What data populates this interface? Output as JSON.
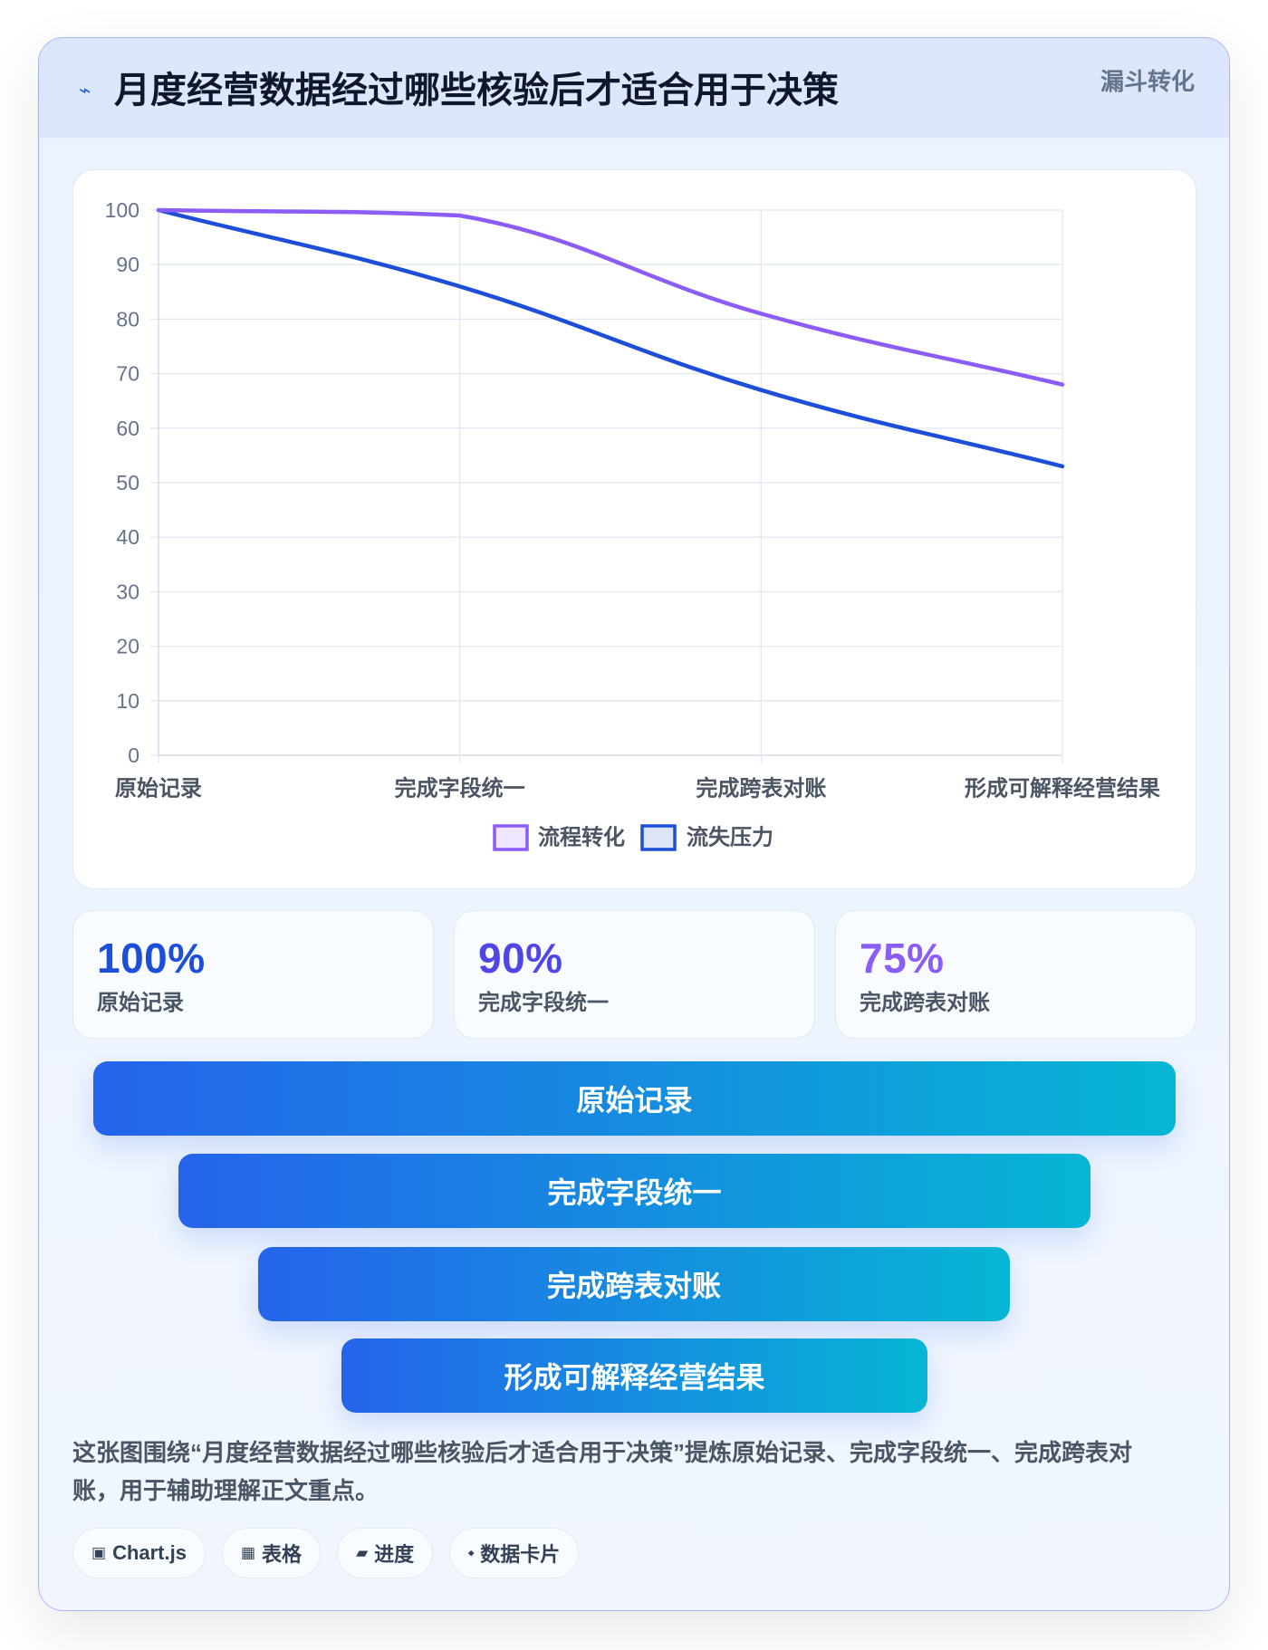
{
  "header": {
    "icon_name": "bolt-icon",
    "icon_glyph": "⌁",
    "title": "月度经营数据经过哪些核验后才适合用于决策",
    "badge": "漏斗转化"
  },
  "chart_data": {
    "type": "line",
    "categories": [
      "原始记录",
      "完成字段统一",
      "完成跨表对账",
      "形成可解释经营结果"
    ],
    "series": [
      {
        "name": "流程转化",
        "values": [
          100,
          99,
          81,
          68
        ],
        "color": "#8b5cf6",
        "fill": "#ede6fd"
      },
      {
        "name": "流失压力",
        "values": [
          100,
          86,
          67,
          53
        ],
        "color": "#1d4ed8",
        "fill": "#dde5f6"
      }
    ],
    "ylim": [
      0,
      100
    ],
    "yticks": [
      0,
      10,
      20,
      30,
      40,
      50,
      60,
      70,
      80,
      90,
      100
    ],
    "grid": true,
    "legend": "bottom-center"
  },
  "stats": [
    {
      "value": "100%",
      "label": "原始记录",
      "color": "#1d4ed8"
    },
    {
      "value": "90%",
      "label": "完成字段统一",
      "color": "#4f46e5"
    },
    {
      "value": "75%",
      "label": "完成跨表对账",
      "color": "#8b5cf6"
    }
  ],
  "funnel": {
    "stages": [
      "原始记录",
      "完成字段统一",
      "完成跨表对账",
      "形成可解释经营结果"
    ],
    "gradient": [
      "#2563eb",
      "#06b6d4"
    ]
  },
  "description": "这张图围绕“月度经营数据经过哪些核验后才适合用于决策”提炼原始记录、完成字段统一、完成跨表对账，用于辅助理解正文重点。",
  "tags": [
    {
      "icon_name": "chart-icon",
      "icon": "▣",
      "label": "Chart.js"
    },
    {
      "icon_name": "table-icon",
      "icon": "▦",
      "label": "表格"
    },
    {
      "icon_name": "progress-icon",
      "icon": "▰",
      "label": "进度"
    },
    {
      "icon_name": "card-icon",
      "icon": "⬩",
      "label": "数据卡片"
    }
  ]
}
